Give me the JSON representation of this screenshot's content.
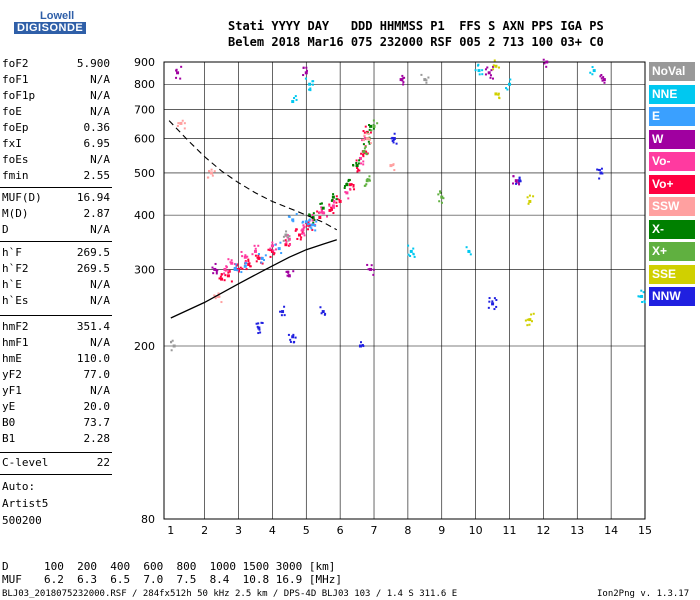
{
  "logo": {
    "top": "Lowell",
    "bottom": "DIGISONDE"
  },
  "header": {
    "line1": "Stati YYYY DAY   DDD HHMMSS P1  FFS S AXN PPS IGA PS",
    "line2": "Belem 2018 Mar16 075 232000 RSF 005 2 713 100 03+ C0"
  },
  "params": [
    {
      "name": "foF2",
      "value": "5.900"
    },
    {
      "name": "foF1",
      "value": "N/A"
    },
    {
      "name": "foF1p",
      "value": "N/A"
    },
    {
      "name": "foE",
      "value": "N/A"
    },
    {
      "name": "foEp",
      "value": "0.36"
    },
    {
      "name": "fxI",
      "value": "6.95"
    },
    {
      "name": "foEs",
      "value": "N/A"
    },
    {
      "name": "fmin",
      "value": "2.55"
    },
    {
      "name": "MUF(D)",
      "value": "16.94"
    },
    {
      "name": "M(D)",
      "value": "2.87"
    },
    {
      "name": "D",
      "value": "N/A"
    },
    {
      "name": "h`F",
      "value": "269.5"
    },
    {
      "name": "h`F2",
      "value": "269.5"
    },
    {
      "name": "h`E",
      "value": "N/A"
    },
    {
      "name": "h`Es",
      "value": "N/A"
    },
    {
      "name": "hmF2",
      "value": "351.4"
    },
    {
      "name": "hmF1",
      "value": "N/A"
    },
    {
      "name": "hmE",
      "value": "110.0"
    },
    {
      "name": "yF2",
      "value": "77.0"
    },
    {
      "name": "yF1",
      "value": "N/A"
    },
    {
      "name": "yE",
      "value": "20.0"
    },
    {
      "name": "B0",
      "value": "73.7"
    },
    {
      "name": "B1",
      "value": "2.28"
    },
    {
      "name": "C-level",
      "value": "22"
    }
  ],
  "auto": {
    "line1": "Auto:",
    "line2": "Artist5",
    "line3": "500200"
  },
  "legend": [
    {
      "label": "NoVal",
      "color": "#999999"
    },
    {
      "label": "NNE",
      "color": "#00c8f0"
    },
    {
      "label": "E",
      "color": "#3aa0ff"
    },
    {
      "label": "W",
      "color": "#a000a0"
    },
    {
      "label": "Vo-",
      "color": "#ff3aa0"
    },
    {
      "label": "Vo+",
      "color": "#ff0040"
    },
    {
      "label": "SSW",
      "color": "#ffa0a0"
    },
    {
      "label": "X-",
      "color": "#008000"
    },
    {
      "label": "X+",
      "color": "#60b040"
    },
    {
      "label": "SSE",
      "color": "#d0d000"
    },
    {
      "label": "NNW",
      "color": "#2020e0"
    }
  ],
  "chart_data": {
    "type": "scatter",
    "x_ticks": [
      "1",
      "2",
      "3",
      "4",
      "5",
      "6",
      "7",
      "8",
      "9",
      "10",
      "11",
      "12",
      "13",
      "14",
      "15"
    ],
    "y_ticks": [
      "80",
      "200",
      "300",
      "400",
      "500",
      "600",
      "700",
      "800",
      "900"
    ],
    "xlim": [
      0.8,
      15.0
    ],
    "ylim": [
      80,
      900
    ],
    "grid": true,
    "series": [
      {
        "name": "Vo+",
        "color": "#ff0040",
        "x": [
          2.5,
          2.7,
          3.0,
          3.3,
          3.6,
          4.0,
          4.4,
          4.8,
          5.1,
          5.4,
          5.7,
          6.0,
          6.3,
          6.5,
          6.7,
          6.8
        ],
        "y": [
          285,
          290,
          300,
          308,
          318,
          330,
          342,
          360,
          378,
          395,
          410,
          430,
          470,
          520,
          560,
          620
        ]
      },
      {
        "name": "Vo-",
        "color": "#ff3aa0",
        "x": [
          2.6,
          2.8,
          3.2,
          3.5,
          4.0,
          4.5,
          4.9,
          5.2,
          5.5,
          5.8,
          6.2,
          6.6,
          6.75
        ],
        "y": [
          300,
          310,
          320,
          330,
          340,
          352,
          370,
          390,
          405,
          420,
          450,
          540,
          600
        ]
      },
      {
        "name": "X-",
        "color": "#008000",
        "x": [
          5.2,
          5.5,
          5.8,
          6.2,
          6.5,
          6.8,
          6.9
        ],
        "y": [
          395,
          415,
          440,
          470,
          520,
          600,
          640
        ]
      },
      {
        "name": "E",
        "color": "#3aa0ff",
        "x": [
          2.9,
          3.2,
          3.7,
          4.2,
          4.6,
          5.0,
          5.2
        ],
        "y": [
          300,
          305,
          318,
          335,
          390,
          386,
          380
        ]
      },
      {
        "name": "W",
        "color": "#a000a0",
        "x": [
          1.2,
          2.3,
          4.5,
          5.0,
          6.9,
          7.8,
          10.4,
          11.2,
          12.1,
          13.8
        ],
        "y": [
          850,
          300,
          290,
          850,
          300,
          820,
          850,
          480,
          900,
          820
        ]
      },
      {
        "name": "NNW",
        "color": "#2020e0",
        "x": [
          3.6,
          4.3,
          4.6,
          5.5,
          6.6,
          7.6,
          10.5,
          11.3,
          13.7
        ],
        "y": [
          220,
          240,
          210,
          240,
          200,
          600,
          250,
          480,
          500
        ]
      },
      {
        "name": "SSW",
        "color": "#ffa0a0",
        "x": [
          1.3,
          2.2,
          2.4,
          6.8,
          7.5
        ],
        "y": [
          650,
          500,
          260,
          600,
          520
        ]
      },
      {
        "name": "SSE",
        "color": "#d0d000",
        "x": [
          10.6,
          10.6,
          11.6,
          11.6
        ],
        "y": [
          880,
          760,
          230,
          430
        ]
      },
      {
        "name": "NNE",
        "color": "#00c8f0",
        "x": [
          4.6,
          5.1,
          8.1,
          9.8,
          10.1,
          11.0,
          13.5,
          14.9
        ],
        "y": [
          730,
          800,
          330,
          330,
          860,
          800,
          860,
          260
        ]
      },
      {
        "name": "X+",
        "color": "#60b040",
        "x": [
          6.7,
          6.8,
          7.0,
          9.0
        ],
        "y": [
          560,
          480,
          640,
          440
        ]
      },
      {
        "name": "NoVal",
        "color": "#999999",
        "x": [
          1.1,
          4.4,
          8.5
        ],
        "y": [
          200,
          360,
          820
        ]
      }
    ],
    "profile_line": {
      "x": [
        1.0,
        2.0,
        3.0,
        3.8,
        4.5,
        5.0,
        5.5,
        5.9
      ],
      "y": [
        232,
        252,
        278,
        300,
        320,
        333,
        343,
        351
      ]
    },
    "upper_dashed_line": {
      "x": [
        0.95,
        1.5,
        2.0,
        2.5,
        3.0,
        3.5,
        4.0,
        4.5,
        5.0,
        5.5,
        5.9
      ],
      "y": [
        660,
        595,
        545,
        505,
        475,
        450,
        430,
        415,
        400,
        385,
        370
      ]
    }
  },
  "table": {
    "d_label": "D",
    "d_values": "100  200  400  600  800  1000 1500 3000 [km]",
    "muf_label": "MUF",
    "muf_values": "6.2  6.3  6.5  7.0  7.5  8.4  10.8 16.9 [MHz]"
  },
  "footer": {
    "left": "BLJ03_2018075232000.RSF / 284fx512h 50 kHz 2.5 km / DPS-4D BLJ03 103 / 1.4 S 311.6 E",
    "right": "Ion2Png v. 1.3.17"
  }
}
